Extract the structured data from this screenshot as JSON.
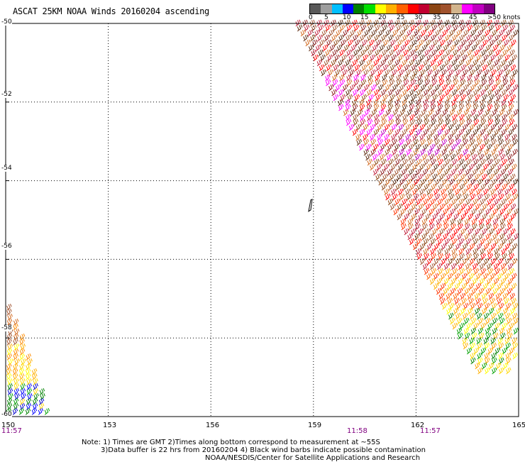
{
  "header": {
    "title": "ASCAT 25KM NOAA Winds 20160204 ascending"
  },
  "colorbar": {
    "colors": [
      "#595959",
      "#9e9e9e",
      "#00bfff",
      "#0000ff",
      "#008000",
      "#00e000",
      "#ffff00",
      "#ffb000",
      "#ff6000",
      "#ff0000",
      "#c00030",
      "#8b4513",
      "#a0522d",
      "#d2b48c",
      "#ff00ff",
      "#c000c0",
      "#800080"
    ],
    "labels": [
      "0",
      "5",
      "10",
      "15",
      "20",
      "25",
      "30",
      "35",
      "40",
      "45",
      ">50 knots"
    ]
  },
  "axes": {
    "lat_labels": [
      "-50",
      "-52",
      "-54",
      "-56",
      "-58",
      "-60"
    ],
    "lon_labels": [
      "150",
      "153",
      "156",
      "159",
      "162",
      "165"
    ]
  },
  "times": [
    "11:57",
    "11:58",
    "11:57"
  ],
  "notes": {
    "line1": "Note: 1) Times are GMT 2)Times along bottom correspond to measurement at ~55S",
    "line2": "3)Data buffer is 22 hrs from 20160204 4) Black wind barbs indicate possible contamination",
    "line3": "NOAA/NESDIS/Center for Satellite Applications and Research"
  },
  "map_data": {
    "lon_range": [
      150,
      165
    ],
    "lat_range": [
      -60,
      -50
    ],
    "swaths": [
      {
        "name": "east",
        "lon_west_edge_at_north": 158.4,
        "lon_west_edge_at_south": 164.4
      },
      {
        "name": "southwest",
        "lon_east_edge_at_north": 150.0,
        "lon_east_edge_at_south": 151.1
      }
    ],
    "island_label": "island outline near 158.9E 54.6S"
  }
}
